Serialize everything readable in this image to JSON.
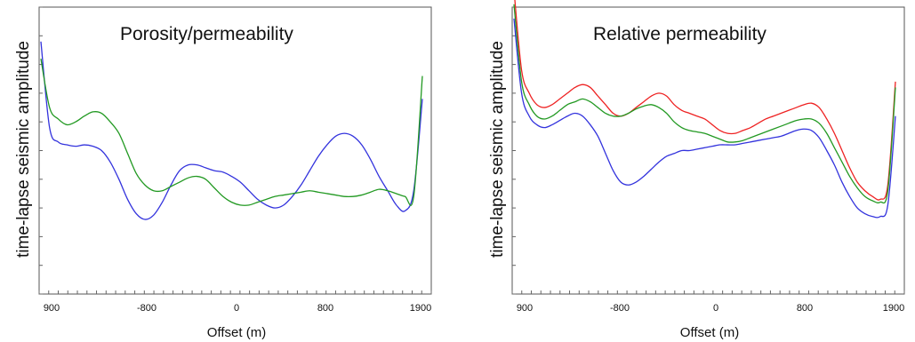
{
  "chart_data": [
    {
      "type": "line",
      "title": "Porosity/permeability",
      "xlabel": "Offset (m)",
      "ylabel": "time-lapse seismic amplitude",
      "x_tick_labels": [
        "900",
        "-800",
        "0",
        "800",
        "1900"
      ],
      "y_ticks_labeled": false,
      "grid": false,
      "series": [
        {
          "color": "#3333dd",
          "values": [
            88,
            58,
            53,
            52,
            51.5,
            52,
            51.5,
            50,
            46,
            40,
            33,
            28,
            26,
            27.5,
            32,
            38,
            43,
            45,
            45,
            44,
            43,
            42.5,
            41,
            39,
            36,
            33,
            31,
            30,
            31,
            34,
            38,
            43,
            48,
            52,
            55,
            56,
            55,
            52,
            47,
            41,
            36,
            31,
            29,
            36,
            68
          ]
        },
        {
          "color": "#229922",
          "values": [
            82,
            65,
            61,
            59,
            60,
            62,
            63.5,
            63,
            60,
            56,
            49,
            42,
            38,
            36,
            36,
            37.5,
            39,
            40.5,
            41,
            40,
            37,
            34,
            32,
            31,
            31,
            32,
            33,
            34,
            34.5,
            35,
            35.5,
            36,
            35.5,
            35,
            34.5,
            34,
            34,
            34.5,
            35.5,
            36.5,
            36,
            35,
            34,
            34,
            76
          ]
        }
      ]
    },
    {
      "type": "line",
      "title": "Relative permeability",
      "xlabel": "Offset (m)",
      "ylabel": "time-lapse seismic amplitude",
      "x_tick_labels": [
        "900",
        "-800",
        "0",
        "800",
        "1900"
      ],
      "y_ticks_labeled": false,
      "grid": false,
      "series": [
        {
          "color": "#ee2222",
          "values": [
            106,
            78,
            70,
            66,
            65,
            66,
            68,
            70,
            72,
            73,
            72,
            69,
            66,
            63,
            62,
            63,
            65,
            67,
            69,
            70,
            69,
            66,
            64,
            63,
            62,
            61,
            59,
            57,
            56,
            56,
            57,
            58,
            59.5,
            61,
            62,
            63,
            64,
            65,
            66,
            66.5,
            65,
            61,
            56,
            50,
            44,
            39,
            36,
            34,
            33,
            38,
            74
          ]
        },
        {
          "color": "#229922",
          "values": [
            101,
            74,
            66,
            62,
            61,
            62,
            64,
            66,
            67,
            68,
            67,
            65,
            63,
            62,
            62,
            63,
            64.5,
            65.5,
            66,
            65,
            63,
            60,
            58,
            57,
            56.5,
            56,
            55,
            54,
            53,
            53,
            53.5,
            54.5,
            55.5,
            56.5,
            57.5,
            58.5,
            59.5,
            60.5,
            61,
            61,
            59.5,
            56,
            51,
            46,
            41,
            37,
            34,
            32.5,
            32,
            36,
            72
          ]
        },
        {
          "color": "#3333dd",
          "values": [
            96,
            70,
            62,
            59,
            58,
            59,
            60.5,
            62,
            63,
            62,
            59,
            55,
            49,
            43,
            39,
            38,
            39,
            41,
            43.5,
            46,
            48,
            49,
            50,
            50,
            50.5,
            51,
            51.5,
            52,
            52,
            52,
            52.5,
            53,
            53.5,
            54,
            54.5,
            55,
            56,
            57,
            57.5,
            57,
            54.5,
            50,
            45,
            39,
            34,
            30,
            28,
            27,
            27,
            31,
            62
          ]
        }
      ]
    }
  ]
}
